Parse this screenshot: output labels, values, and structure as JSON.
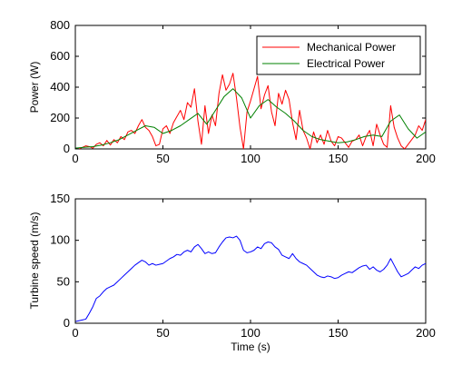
{
  "chart_data": [
    {
      "type": "line",
      "xlabel": "",
      "ylabel": "Power (W)",
      "xlim": [
        0,
        200
      ],
      "ylim": [
        0,
        800
      ],
      "xticks": [
        0,
        50,
        100,
        150,
        200
      ],
      "yticks": [
        0,
        200,
        400,
        600,
        800
      ],
      "xtick_labels": [
        "0",
        "50",
        "100",
        "150",
        "200"
      ],
      "ytick_labels": [
        "0",
        "200",
        "400",
        "600",
        "800"
      ],
      "grid": false,
      "legend": "top-right",
      "series": [
        {
          "name": "Mechanical Power",
          "color": "#ff0000",
          "x": [
            0,
            2,
            4,
            6,
            8,
            10,
            12,
            14,
            16,
            18,
            20,
            22,
            24,
            26,
            28,
            30,
            32,
            34,
            36,
            38,
            40,
            42,
            44,
            46,
            48,
            50,
            52,
            54,
            56,
            58,
            60,
            62,
            64,
            66,
            68,
            70,
            72,
            74,
            76,
            78,
            80,
            82,
            84,
            86,
            88,
            90,
            92,
            94,
            96,
            98,
            100,
            102,
            104,
            106,
            108,
            110,
            112,
            114,
            116,
            118,
            120,
            122,
            124,
            126,
            128,
            130,
            132,
            134,
            136,
            138,
            140,
            142,
            144,
            146,
            148,
            150,
            152,
            154,
            156,
            158,
            160,
            162,
            164,
            166,
            168,
            170,
            172,
            174,
            176,
            178,
            180,
            182,
            184,
            186,
            188,
            190,
            192,
            194,
            196,
            198,
            200
          ],
          "y": [
            5,
            0,
            10,
            20,
            15,
            5,
            30,
            40,
            20,
            55,
            25,
            60,
            40,
            80,
            60,
            110,
            120,
            100,
            150,
            190,
            140,
            120,
            80,
            20,
            30,
            130,
            150,
            100,
            170,
            210,
            250,
            190,
            300,
            270,
            390,
            180,
            30,
            280,
            100,
            220,
            150,
            360,
            480,
            380,
            420,
            490,
            330,
            140,
            0,
            240,
            310,
            390,
            470,
            260,
            350,
            410,
            240,
            150,
            360,
            290,
            380,
            320,
            170,
            60,
            250,
            120,
            70,
            0,
            110,
            40,
            90,
            30,
            120,
            50,
            20,
            80,
            70,
            40,
            10,
            50,
            60,
            90,
            20,
            80,
            120,
            20,
            160,
            90,
            30,
            10,
            280,
            140,
            70,
            20,
            0,
            30,
            60,
            90,
            150,
            120,
            190
          ]
        },
        {
          "name": "Electrical Power",
          "color": "#008000",
          "x": [
            0,
            5,
            10,
            15,
            20,
            25,
            30,
            35,
            40,
            45,
            50,
            55,
            60,
            65,
            70,
            75,
            80,
            85,
            90,
            95,
            100,
            105,
            110,
            115,
            120,
            125,
            130,
            135,
            140,
            145,
            150,
            155,
            160,
            165,
            170,
            175,
            180,
            185,
            190,
            195,
            200
          ],
          "y": [
            5,
            10,
            15,
            25,
            40,
            60,
            90,
            120,
            150,
            140,
            100,
            120,
            150,
            190,
            230,
            160,
            250,
            340,
            390,
            330,
            200,
            280,
            320,
            270,
            230,
            180,
            120,
            80,
            60,
            50,
            40,
            45,
            60,
            80,
            90,
            80,
            180,
            220,
            130,
            70,
            110
          ]
        }
      ]
    },
    {
      "type": "line",
      "xlabel": "Time (s)",
      "ylabel": "Turbine speed (m/s)",
      "xlim": [
        0,
        200
      ],
      "ylim": [
        0,
        150
      ],
      "xticks": [
        0,
        50,
        100,
        150,
        200
      ],
      "yticks": [
        0,
        50,
        100,
        150
      ],
      "xtick_labels": [
        "0",
        "50",
        "100",
        "150",
        "200"
      ],
      "ytick_labels": [
        "0",
        "50",
        "100",
        "150"
      ],
      "grid": false,
      "series": [
        {
          "color": "#0000ff",
          "x": [
            0,
            2,
            4,
            6,
            8,
            10,
            12,
            14,
            16,
            18,
            20,
            22,
            24,
            26,
            28,
            30,
            32,
            34,
            36,
            38,
            40,
            42,
            44,
            46,
            48,
            50,
            52,
            54,
            56,
            58,
            60,
            62,
            64,
            66,
            68,
            70,
            72,
            74,
            76,
            78,
            80,
            82,
            84,
            86,
            88,
            90,
            92,
            94,
            96,
            98,
            100,
            102,
            104,
            106,
            108,
            110,
            112,
            114,
            116,
            118,
            120,
            122,
            124,
            126,
            128,
            130,
            132,
            134,
            136,
            138,
            140,
            142,
            144,
            146,
            148,
            150,
            152,
            154,
            156,
            158,
            160,
            162,
            164,
            166,
            168,
            170,
            172,
            174,
            176,
            178,
            180,
            182,
            184,
            186,
            188,
            190,
            192,
            194,
            196,
            198,
            200
          ],
          "y": [
            2,
            3,
            4,
            5,
            12,
            20,
            30,
            33,
            38,
            42,
            44,
            46,
            50,
            54,
            58,
            62,
            66,
            70,
            73,
            76,
            74,
            70,
            72,
            70,
            71,
            72,
            75,
            78,
            80,
            83,
            82,
            86,
            88,
            86,
            92,
            95,
            90,
            84,
            86,
            84,
            85,
            92,
            98,
            103,
            104,
            103,
            105,
            100,
            88,
            85,
            86,
            88,
            92,
            90,
            96,
            98,
            97,
            92,
            89,
            82,
            80,
            78,
            84,
            78,
            74,
            72,
            70,
            66,
            62,
            58,
            56,
            55,
            57,
            56,
            54,
            55,
            58,
            60,
            62,
            61,
            64,
            67,
            69,
            70,
            65,
            68,
            64,
            62,
            65,
            70,
            78,
            70,
            62,
            56,
            58,
            60,
            64,
            68,
            66,
            70,
            72
          ]
        }
      ]
    }
  ]
}
